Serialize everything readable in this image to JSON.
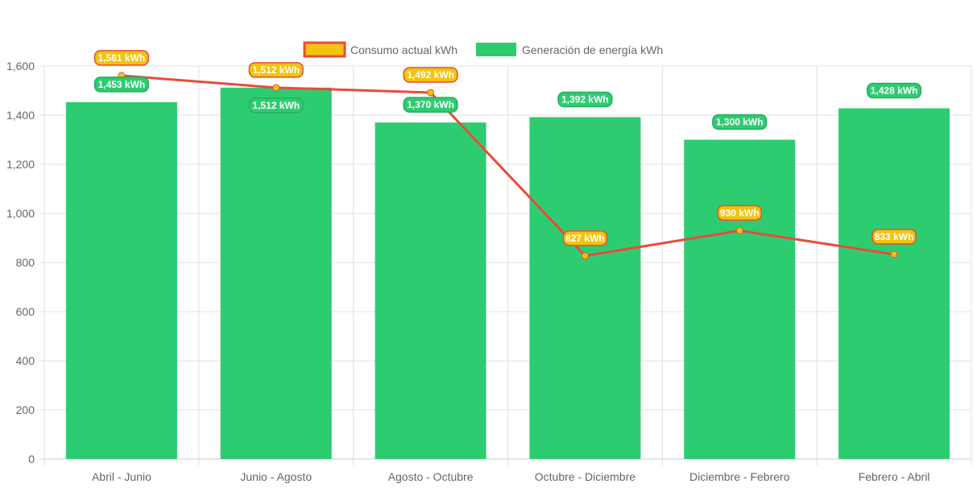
{
  "chart_data": {
    "type": "bar",
    "categories": [
      "Abril - Junio",
      "Junio - Agosto",
      "Agosto - Octubre",
      "Octubre - Diciembre",
      "Diciembre - Febrero",
      "Febrero - Abril"
    ],
    "series": [
      {
        "name": "Consumo actual kWh",
        "type": "line",
        "values": [
          1561,
          1512,
          1492,
          827,
          930,
          833
        ],
        "color": "#e74c3c",
        "point_color": "#f1c40f"
      },
      {
        "name": "Generación de energía kWh",
        "type": "bar",
        "values": [
          1453,
          1512,
          1370,
          1392,
          1300,
          1428
        ],
        "color": "#2ecc71"
      }
    ],
    "data_label_unit": "kWh",
    "ylim": [
      0,
      1600
    ],
    "yticks": [
      0,
      200,
      400,
      600,
      800,
      1000,
      1200,
      1400,
      1600
    ],
    "grid": true,
    "legend": "top"
  }
}
